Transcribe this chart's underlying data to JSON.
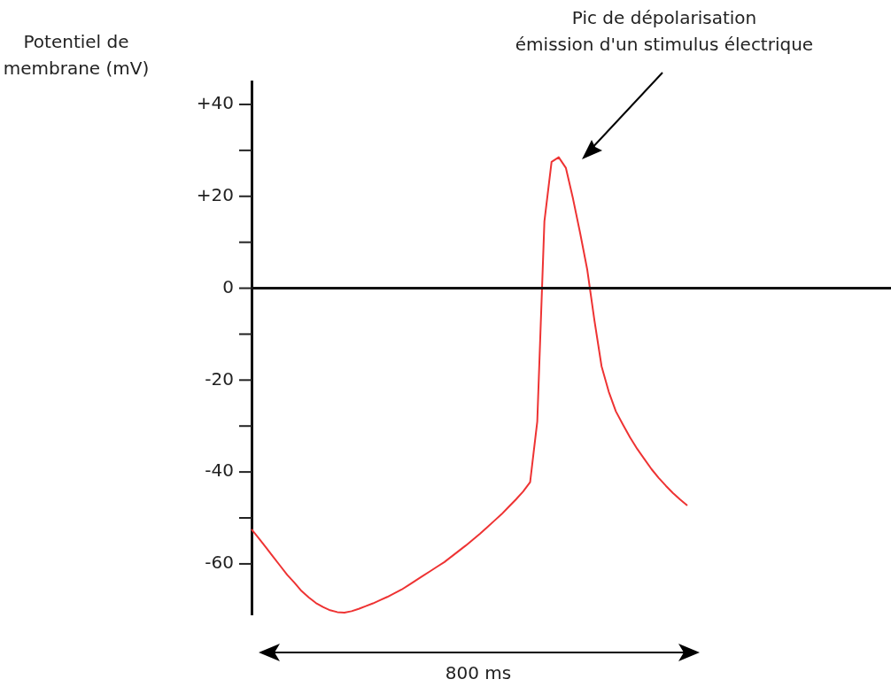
{
  "chart_data": {
    "type": "line",
    "ylabel": "Potentiel de membrane (mV)",
    "annotations": [
      "Pic de dépolarisation\némission d'un stimulus électrique",
      "800 ms"
    ],
    "categories": [
      null,
      null,
      null,
      null,
      null,
      null,
      null,
      null,
      null,
      null,
      null,
      null,
      null,
      null,
      null,
      null,
      null,
      null,
      null,
      null,
      null,
      null,
      null,
      null,
      null,
      null,
      null,
      null,
      null,
      null,
      null,
      null,
      null,
      null,
      null,
      null,
      null,
      null,
      null,
      null,
      null,
      null,
      null,
      null,
      null,
      null,
      null,
      null,
      null,
      null,
      null,
      null,
      null,
      null,
      null,
      null,
      null,
      null,
      null,
      null,
      null,
      null
    ],
    "values": [
      -52.5,
      -54.4,
      -56.4,
      -58.4,
      -60.4,
      -62.4,
      -64.1,
      -65.9,
      -67.3,
      -68.5,
      -69.4,
      -70.1,
      -70.5,
      -70.6,
      -70.3,
      -69.8,
      -69.2,
      -68.6,
      -67.9,
      -67.2,
      -66.4,
      -65.6,
      -64.6,
      -63.6,
      -62.6,
      -61.6,
      -60.6,
      -59.6,
      -58.4,
      -57.2,
      -56,
      -54.7,
      -53.4,
      -52,
      -50.6,
      -49.2,
      -47.6,
      -46,
      -44.3,
      -42.2,
      -29,
      14.6,
      27.5,
      28.5,
      26.2,
      19.5,
      12,
      4,
      -7,
      -17,
      -22.5,
      -26.8,
      -29.7,
      -32.5,
      -35,
      -37.2,
      -39.4,
      -41.3,
      -43,
      -44.6,
      -46,
      -47.3
    ],
    "color": "#ee3333",
    "ylim": [
      -71,
      45
    ],
    "yticks": [
      {
        "value": -60,
        "label": "-60"
      },
      {
        "value": -50,
        "label": null
      },
      {
        "value": -40,
        "label": "-40"
      },
      {
        "value": -30,
        "label": null
      },
      {
        "value": -20,
        "label": "-20"
      },
      {
        "value": -10,
        "label": null
      },
      {
        "value": 0,
        "label": "0"
      },
      {
        "value": 10,
        "label": null
      },
      {
        "value": 20,
        "label": "+20"
      },
      {
        "value": 30,
        "label": null
      },
      {
        "value": 40,
        "label": "+40"
      }
    ],
    "tick_labels": "y",
    "marker": "none",
    "line_style": "solid",
    "legend": false
  }
}
